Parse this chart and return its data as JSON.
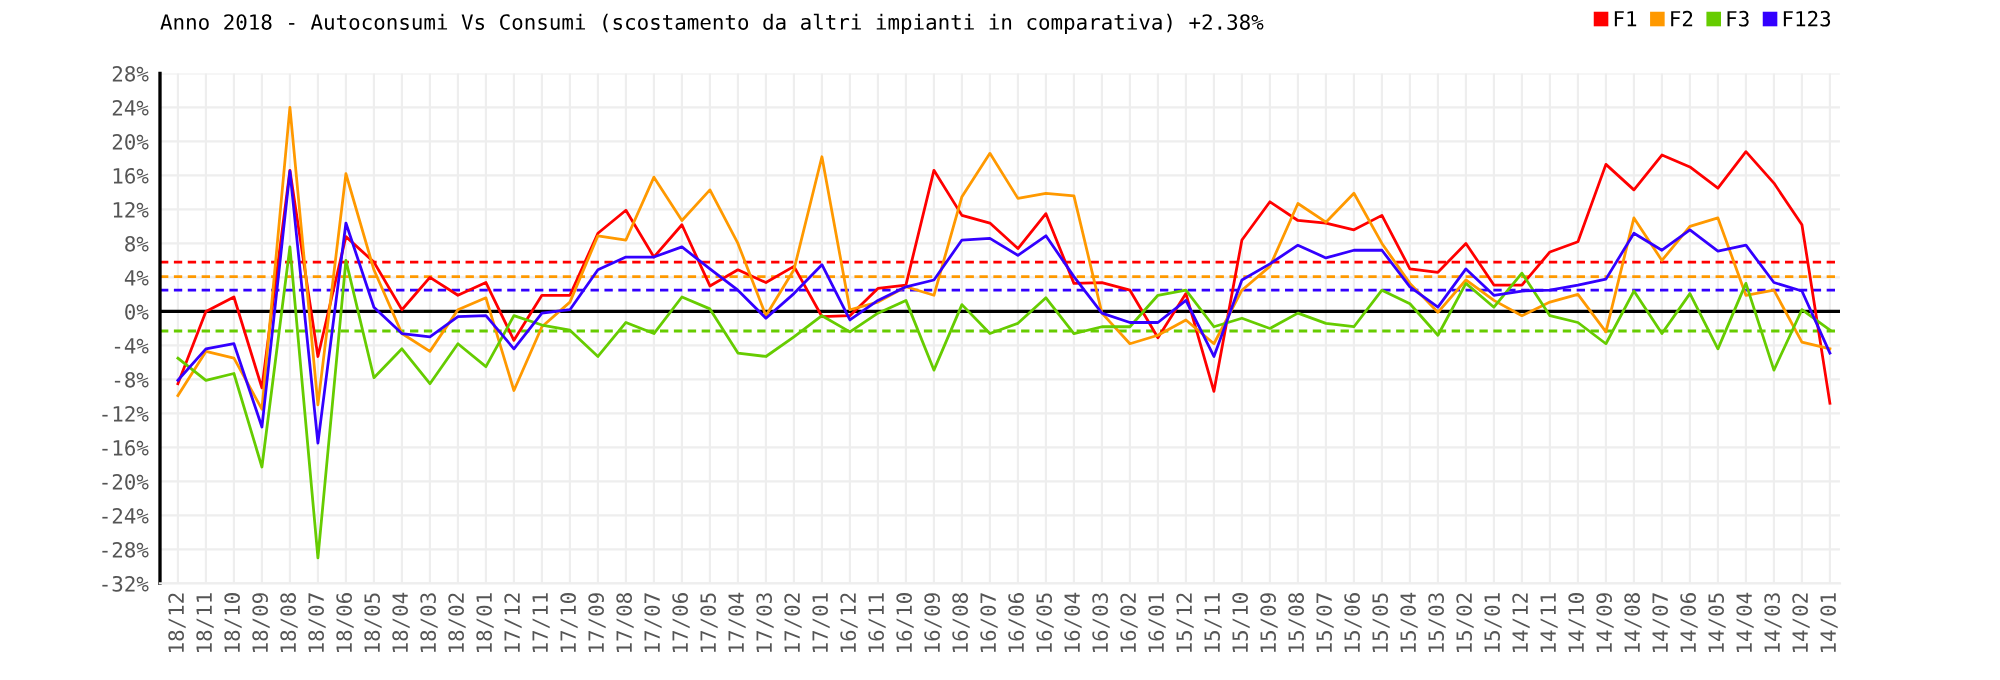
{
  "chart_data": {
    "type": "line",
    "title": "Anno 2018 - Autoconsumi Vs Consumi (scostamento da altri impianti in comparativa) +2.38%",
    "categories": [
      "18/12",
      "18/11",
      "18/10",
      "18/09",
      "18/08",
      "18/07",
      "18/06",
      "18/05",
      "18/04",
      "18/03",
      "18/02",
      "18/01",
      "17/12",
      "17/11",
      "17/10",
      "17/09",
      "17/08",
      "17/07",
      "17/06",
      "17/05",
      "17/04",
      "17/03",
      "17/02",
      "17/01",
      "16/12",
      "16/11",
      "16/10",
      "16/09",
      "16/08",
      "16/07",
      "16/06",
      "16/05",
      "16/04",
      "16/03",
      "16/02",
      "16/01",
      "15/12",
      "15/11",
      "15/10",
      "15/09",
      "15/08",
      "15/07",
      "15/06",
      "15/05",
      "15/04",
      "15/03",
      "15/02",
      "15/01",
      "14/12",
      "14/11",
      "14/10",
      "14/09",
      "14/08",
      "14/07",
      "14/06",
      "14/05",
      "14/04",
      "14/03",
      "14/02",
      "14/01"
    ],
    "series": [
      {
        "name": "F1",
        "color": "#ff0000",
        "values": [
          -8.5,
          0,
          1.7,
          -9,
          16.6,
          -5.3,
          8.8,
          5.8,
          0.2,
          4,
          1.9,
          3.4,
          -3.4,
          1.9,
          1.9,
          9.2,
          11.9,
          6.4,
          10.2,
          3,
          4.9,
          3.4,
          5.3,
          -0.6,
          -0.5,
          2.7,
          3.1,
          16.6,
          11.3,
          10.4,
          7.4,
          11.5,
          3.3,
          3.4,
          2.5,
          -3.1,
          2.1,
          -9.4,
          8.4,
          12.9,
          10.7,
          10.4,
          9.6,
          11.3,
          5,
          4.6,
          8,
          3.1,
          3.1,
          7,
          8.2,
          17.3,
          14.3,
          18.4,
          17,
          14.5,
          18.8,
          15.1,
          10.2,
          -10.8
        ]
      },
      {
        "name": "F2",
        "color": "#ff9900",
        "values": [
          -9.9,
          -4.7,
          -5.5,
          -11.5,
          24,
          -11,
          16.2,
          4.9,
          -2.6,
          -4.7,
          0.2,
          1.6,
          -9.3,
          -1.8,
          1.1,
          8.9,
          8.4,
          15.8,
          10.7,
          14.3,
          8,
          -0.5,
          4.9,
          18.2,
          0.2,
          1.1,
          2.9,
          1.9,
          13.5,
          18.6,
          13.3,
          13.9,
          13.6,
          -0.2,
          -3.8,
          -2.8,
          -1,
          -3.8,
          2.5,
          5.3,
          12.7,
          10.5,
          13.9,
          8,
          3.3,
          -0.1,
          3.7,
          1.3,
          -0.5,
          1.1,
          2,
          -2.4,
          11,
          6,
          10,
          11,
          1.9,
          2.5,
          -3.6,
          -4.4
        ]
      },
      {
        "name": "F3",
        "color": "#66cc00",
        "values": [
          -5.5,
          -8.1,
          -7.3,
          -18.3,
          7.6,
          -29,
          6,
          -7.8,
          -4.4,
          -8.5,
          -3.8,
          -6.5,
          -0.5,
          -1.6,
          -2.2,
          -5.3,
          -1.3,
          -2.6,
          1.7,
          0.3,
          -4.9,
          -5.3,
          -3,
          -0.5,
          -2.4,
          -0.2,
          1.3,
          -6.9,
          0.8,
          -2.6,
          -1.4,
          1.6,
          -2.6,
          -1.8,
          -1.8,
          1.9,
          2.5,
          -1.8,
          -0.8,
          -2,
          -0.2,
          -1.4,
          -1.8,
          2.5,
          0.9,
          -2.8,
          3.3,
          0.5,
          4.5,
          -0.5,
          -1.3,
          -3.8,
          2.4,
          -2.6,
          2.1,
          -4.4,
          3.3,
          -6.9,
          0.2,
          -2.2
        ]
      },
      {
        "name": "F123",
        "color": "#3300ff",
        "values": [
          -8.1,
          -4.4,
          -3.8,
          -13.6,
          16.5,
          -15.5,
          10.4,
          0.5,
          -2.6,
          -3,
          -0.6,
          -0.5,
          -4.4,
          -0.2,
          0.2,
          4.9,
          6.4,
          6.4,
          7.6,
          5,
          2.5,
          -0.8,
          2.1,
          5.5,
          -1,
          1.3,
          2.9,
          3.7,
          8.4,
          8.6,
          6.6,
          8.9,
          4.1,
          -0.2,
          -1.3,
          -1.3,
          1.3,
          -5.3,
          3.7,
          5.6,
          7.8,
          6.3,
          7.2,
          7.2,
          2.9,
          0.5,
          5,
          1.9,
          2.4,
          2.5,
          3.1,
          3.8,
          9.2,
          7.2,
          9.6,
          7.1,
          7.8,
          3.4,
          2.4,
          -4.9
        ]
      }
    ],
    "ylim": [
      -32,
      28
    ],
    "yticks": [
      {
        "value": -32,
        "label": "-32%"
      },
      {
        "value": -28,
        "label": "-28%"
      },
      {
        "value": -24,
        "label": "-24%"
      },
      {
        "value": -20,
        "label": "-20%"
      },
      {
        "value": -16,
        "label": "-16%"
      },
      {
        "value": -12,
        "label": "-12%"
      },
      {
        "value": -8,
        "label": "-8%"
      },
      {
        "value": -4,
        "label": "-4%"
      },
      {
        "value": 0,
        "label": "0%"
      },
      {
        "value": 4,
        "label": "4%"
      },
      {
        "value": 8,
        "label": "8%"
      },
      {
        "value": 12,
        "label": "12%"
      },
      {
        "value": 16,
        "label": "16%"
      },
      {
        "value": 20,
        "label": "20%"
      },
      {
        "value": 24,
        "label": "24%"
      },
      {
        "value": 28,
        "label": "28%"
      }
    ],
    "ref_lines": [
      {
        "axis": "y",
        "value": 0,
        "color": "#000000",
        "line_style": "solid"
      },
      {
        "axis": "y",
        "value": 5.8,
        "color": "#ff0000",
        "line_style": "dashed"
      },
      {
        "axis": "y",
        "value": 4.1,
        "color": "#ff9900",
        "line_style": "dashed"
      },
      {
        "axis": "y",
        "value": 2.5,
        "color": "#3300ff",
        "line_style": "dashed"
      },
      {
        "axis": "y",
        "value": -2.3,
        "color": "#66cc00",
        "line_style": "dashed"
      }
    ],
    "grid": true,
    "legend": "top right",
    "marker": "none",
    "line_style": "solid"
  }
}
